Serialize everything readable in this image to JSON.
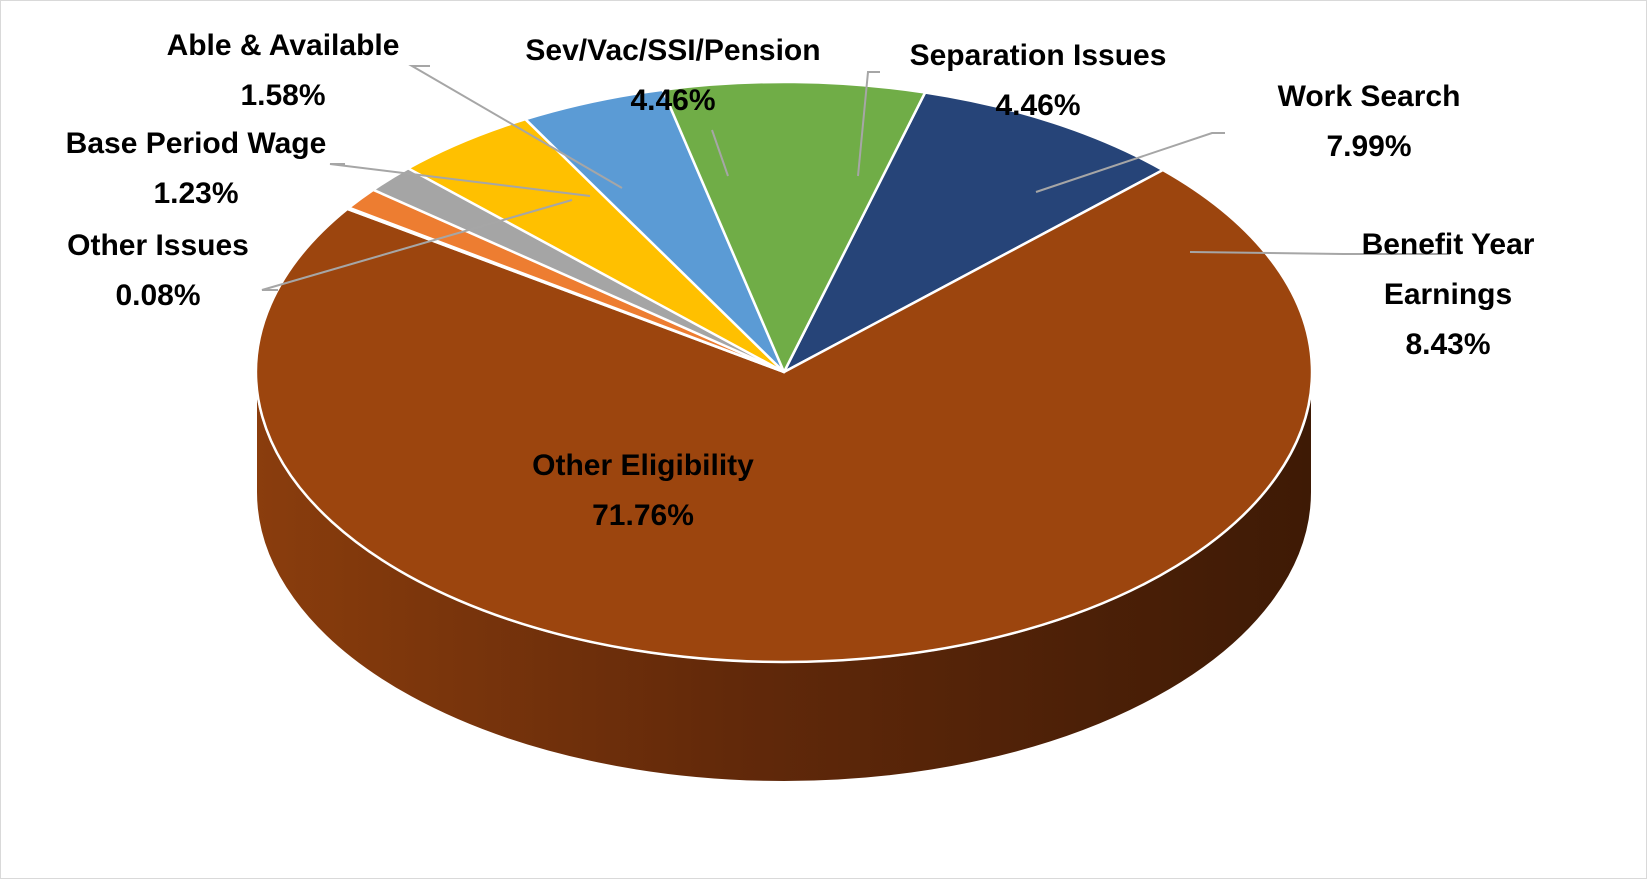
{
  "chart_data": {
    "type": "pie",
    "style": "3d",
    "title": "",
    "slices": [
      {
        "label": "Benefit Year Earnings",
        "label_lines": [
          "Benefit Year",
          "Earnings"
        ],
        "pct": "8.43%",
        "value": 8.43,
        "color": "#264478"
      },
      {
        "label": "Other Eligibility",
        "label_lines": [
          "Other Eligibility"
        ],
        "pct": "71.76%",
        "value": 71.76,
        "color": "#9C450E"
      },
      {
        "label": "Other Issues",
        "label_lines": [
          "Other Issues"
        ],
        "pct": "0.08%",
        "value": 0.08,
        "color": "#7A7A7A"
      },
      {
        "label": "Base Period Wage",
        "label_lines": [
          "Base Period Wage"
        ],
        "pct": "1.23%",
        "value": 1.23,
        "color": "#ED7D31"
      },
      {
        "label": "Able & Available",
        "label_lines": [
          "Able & Available"
        ],
        "pct": "1.58%",
        "value": 1.58,
        "color": "#A5A5A5"
      },
      {
        "label": "Sev/Vac/SSI/Pension",
        "label_lines": [
          "Sev/Vac/SSI/Pension"
        ],
        "pct": "4.46%",
        "value": 4.46,
        "color": "#FFC000"
      },
      {
        "label": "Separation Issues",
        "label_lines": [
          "Separation Issues"
        ],
        "pct": "4.46%",
        "value": 4.46,
        "color": "#5B9BD5"
      },
      {
        "label": "Work Search",
        "label_lines": [
          "Work Search"
        ],
        "pct": "7.99%",
        "value": 7.99,
        "color": "#70AD47"
      }
    ]
  }
}
